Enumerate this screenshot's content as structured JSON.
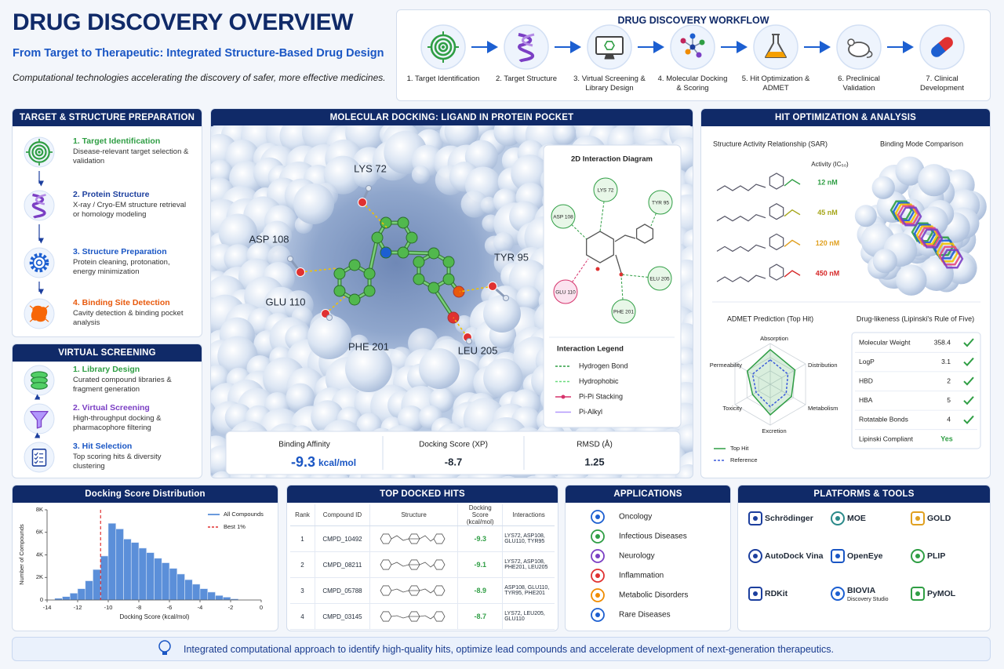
{
  "header": {
    "title": "DRUG DISCOVERY OVERVIEW",
    "subtitle": "From Target to Therapeutic: Integrated Structure-Based Drug Design",
    "tagline": "Computational technologies accelerating the discovery of safer, more effective medicines."
  },
  "workflow": {
    "title": "DRUG DISCOVERY WORKFLOW",
    "steps": [
      "1. Target Identification",
      "2. Target Structure",
      "3. Virtual Screening & Library Design",
      "4. Molecular Docking & Scoring",
      "5. Hit Optimization & ADMET",
      "6. Preclinical Validation",
      "7. Clinical Development"
    ]
  },
  "target_prep": {
    "title": "TARGET & STRUCTURE PREPARATION",
    "items": [
      {
        "title": "1. Target Identification",
        "text": "Disease-relevant target selection & validation"
      },
      {
        "title": "2. Protein Structure",
        "text": "X-ray / Cryo-EM structure retrieval or homology modeling"
      },
      {
        "title": "3. Structure Preparation",
        "text": "Protein cleaning, protonation, energy minimization"
      },
      {
        "title": "4. Binding Site Detection",
        "text": "Cavity detection & binding pocket analysis"
      }
    ]
  },
  "virtual_screening": {
    "title": "VIRTUAL SCREENING",
    "items": [
      {
        "title": "1. Library Design",
        "text": "Curated compound libraries & fragment generation"
      },
      {
        "title": "2. Virtual Screening",
        "text": "High-throughput docking & pharmacophore filtering"
      },
      {
        "title": "3. Hit Selection",
        "text": "Top scoring hits & diversity clustering"
      }
    ]
  },
  "docking": {
    "title": "MOLECULAR DOCKING: LIGAND IN PROTEIN POCKET",
    "residues": [
      "LYS 72",
      "ASP 108",
      "TYR 95",
      "GLU 110",
      "PHE 201",
      "LEU 205"
    ],
    "diagram": {
      "title": "2D Interaction Diagram",
      "nodes": [
        "LYS 72",
        "TYR 95",
        "ASP 108",
        "ELU 205",
        "GLU 110",
        "PHE 201"
      ],
      "legend_title": "Interaction Legend",
      "legend": [
        "Hydrogen Bond",
        "Hydrophobic",
        "Pi-Pi Stacking",
        "Pi-Alkyl"
      ]
    },
    "metrics": [
      {
        "label": "Binding Affinity",
        "value": "-9.3",
        "unit": "kcal/mol"
      },
      {
        "label": "Docking Score (XP)",
        "value": "-8.7"
      },
      {
        "label": "RMSD (Å)",
        "value": "1.25"
      }
    ]
  },
  "hit_optimization": {
    "title": "HIT OPTIMIZATION & ANALYSIS",
    "sar": {
      "title": "Structure Activity Relationship (SAR)",
      "activity_title": "Activity (IC₅₀)",
      "activities": [
        "12 nM",
        "45 nM",
        "120 nM",
        "450 nM"
      ]
    },
    "binding_mode_title": "Binding Mode Comparison",
    "admet": {
      "type": "radar",
      "title": "ADMET Prediction (Top Hit)",
      "axes": [
        "Absorption",
        "Distribution",
        "Metabolism",
        "Excretion",
        "Toxicity",
        "Permeability"
      ],
      "series": [
        {
          "name": "Top Hit",
          "color": "#2f9e44",
          "values": [
            0.85,
            0.7,
            0.6,
            0.75,
            0.5,
            0.65
          ]
        },
        {
          "name": "Reference",
          "color": "#3b5bdb",
          "values": [
            0.6,
            0.5,
            0.45,
            0.55,
            0.4,
            0.5
          ]
        }
      ]
    },
    "lipinski": {
      "title": "Drug-likeness (Lipinski's Rule of Five)",
      "rows": [
        [
          "Molecular Weight",
          "358.4"
        ],
        [
          "LogP",
          "3.1"
        ],
        [
          "HBD",
          "2"
        ],
        [
          "HBA",
          "5"
        ],
        [
          "Rotatable Bonds",
          "4"
        ],
        [
          "Lipinski Compliant",
          "Yes"
        ]
      ]
    }
  },
  "chart_data": {
    "type": "histogram",
    "title": "Docking Score Distribution",
    "x_label": "Docking Score (kcal/mol)",
    "y_label": "Number of Compounds",
    "series_name": "All Compounds",
    "color": "#5b8fd9",
    "bins": [
      -13.5,
      -13,
      -12.5,
      -12,
      -11.5,
      -11,
      -10.5,
      -10,
      -9.5,
      -9,
      -8.5,
      -8,
      -7.5,
      -7,
      -6.5,
      -6,
      -5.5,
      -5,
      -4.5,
      -4,
      -3.5,
      -3,
      -2.5,
      -2,
      -1.5
    ],
    "counts": [
      150,
      300,
      600,
      1000,
      1700,
      2700,
      3900,
      6800,
      6300,
      5400,
      5100,
      4600,
      4200,
      3700,
      3300,
      2800,
      2300,
      1800,
      1400,
      1000,
      700,
      400,
      250,
      100
    ],
    "reference_line": {
      "name": "Best 1%",
      "value": -10.5,
      "color": "#e03131"
    },
    "xlim": [
      -14,
      0
    ],
    "xticks": [
      -14,
      -12,
      -10,
      -8,
      -6,
      -4,
      -2,
      0
    ],
    "ylim": [
      0,
      8000
    ],
    "yticks": [
      0,
      {
        "value": 2000,
        "label": "2K"
      },
      {
        "value": 4000,
        "label": "4K"
      },
      {
        "value": 6000,
        "label": "6K"
      },
      {
        "value": 8000,
        "label": "8K"
      }
    ]
  },
  "top_hits": {
    "title": "TOP DOCKED HITS",
    "columns": [
      "Rank",
      "Compound ID",
      "Structure",
      "Docking Score (kcal/mol)",
      "Interactions"
    ],
    "rows": [
      {
        "rank": "1",
        "id": "CMPD_10492",
        "score": "-9.3",
        "interactions": "LYS72, ASP108, GLU110, TYR95"
      },
      {
        "rank": "2",
        "id": "CMPD_08211",
        "score": "-9.1",
        "interactions": "LYS72, ASP108, PHE201, LEU205"
      },
      {
        "rank": "3",
        "id": "CMPD_05788",
        "score": "-8.9",
        "interactions": "ASP108, GLU110, TYR95, PHE201"
      },
      {
        "rank": "4",
        "id": "CMPD_03145",
        "score": "-8.7",
        "interactions": "LYS72, LEU205, GLU110"
      }
    ]
  },
  "applications": {
    "title": "APPLICATIONS",
    "items": [
      "Oncology",
      "Infectious Diseases",
      "Neurology",
      "Inflammation",
      "Metabolic Disorders",
      "Rare Diseases"
    ]
  },
  "platforms": {
    "title": "PLATFORMS & TOOLS",
    "items": [
      {
        "name": "Schrödinger"
      },
      {
        "name": "MOE"
      },
      {
        "name": "GOLD"
      },
      {
        "name": "AutoDock Vina"
      },
      {
        "name": "OpenEye"
      },
      {
        "name": "PLIP"
      },
      {
        "name": "RDKit"
      },
      {
        "name": "BIOVIA",
        "sub": "Discovery Studio"
      },
      {
        "name": "PyMOL"
      }
    ]
  },
  "footer": {
    "text": "Integrated computational approach to identify high-quality hits, optimize lead compounds and accelerate development of next-generation therapeutics."
  }
}
